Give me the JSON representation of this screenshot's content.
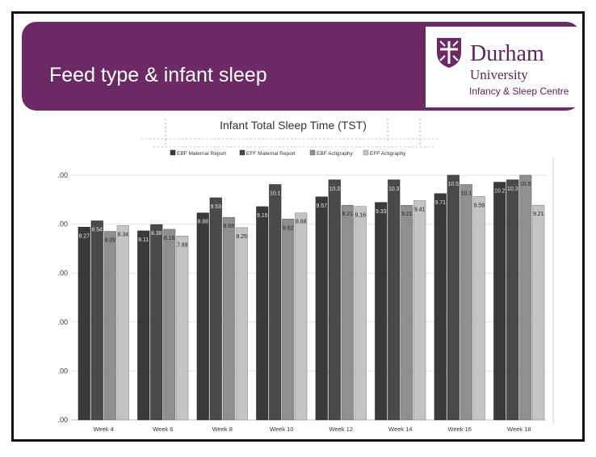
{
  "slide": {
    "title": "Feed type & infant sleep",
    "logo": {
      "name": "Durham",
      "university": "University",
      "centre": "Infancy & Sleep Centre"
    }
  },
  "colors": {
    "banner": "#6b2a63",
    "ebf_report": "#3a3a3a",
    "eff_report": "#4a4a4a",
    "ebf_acti": "#8f8f8f",
    "eff_acti": "#c4c4c4"
  },
  "chart_data": {
    "type": "bar",
    "title": "Infant Total Sleep Time (TST)",
    "categories": [
      "Week 4",
      "Week 6",
      "Week 8",
      "Week 10",
      "Week 12",
      "Week 14",
      "Week 16",
      "Week 18"
    ],
    "ytick_labels": [
      ".00",
      ".00",
      ".00",
      ".00",
      ".00",
      ".00"
    ],
    "ylim": [
      0,
      10.5
    ],
    "legend_position": "top",
    "series": [
      {
        "name": "EBF Maternal Report",
        "values": [
          8.27,
          8.11,
          8.88,
          9.15,
          9.57,
          9.33,
          9.71,
          10.2
        ],
        "labels": [
          "8.27",
          "8.11",
          "8.88",
          "9.15",
          "9.57",
          "9.33",
          "9.71",
          "10.2"
        ]
      },
      {
        "name": "EFF Maternal Report",
        "values": [
          8.54,
          8.38,
          9.53,
          10.1,
          10.3,
          10.3,
          10.5,
          10.3
        ],
        "labels": [
          "8.54",
          "8.38",
          "9.53",
          "10.1",
          "10.3",
          "10.3",
          "10.5",
          "10.3"
        ]
      },
      {
        "name": "EBF Actigraphy",
        "values": [
          8.09,
          8.18,
          8.69,
          8.62,
          9.21,
          9.21,
          10.1,
          10.5
        ],
        "labels": [
          "8.09",
          "8.18",
          "8.69",
          "8.62",
          "9.21",
          "9.21",
          "10.1",
          "10.5"
        ]
      },
      {
        "name": "EFF Actigraphy",
        "values": [
          8.34,
          7.89,
          8.25,
          8.88,
          9.16,
          9.41,
          9.59,
          9.21
        ],
        "labels": [
          "8.34",
          "7.89",
          "8.25",
          "8.88",
          "9.16",
          "9.41",
          "9.59",
          "9.21"
        ]
      }
    ]
  }
}
